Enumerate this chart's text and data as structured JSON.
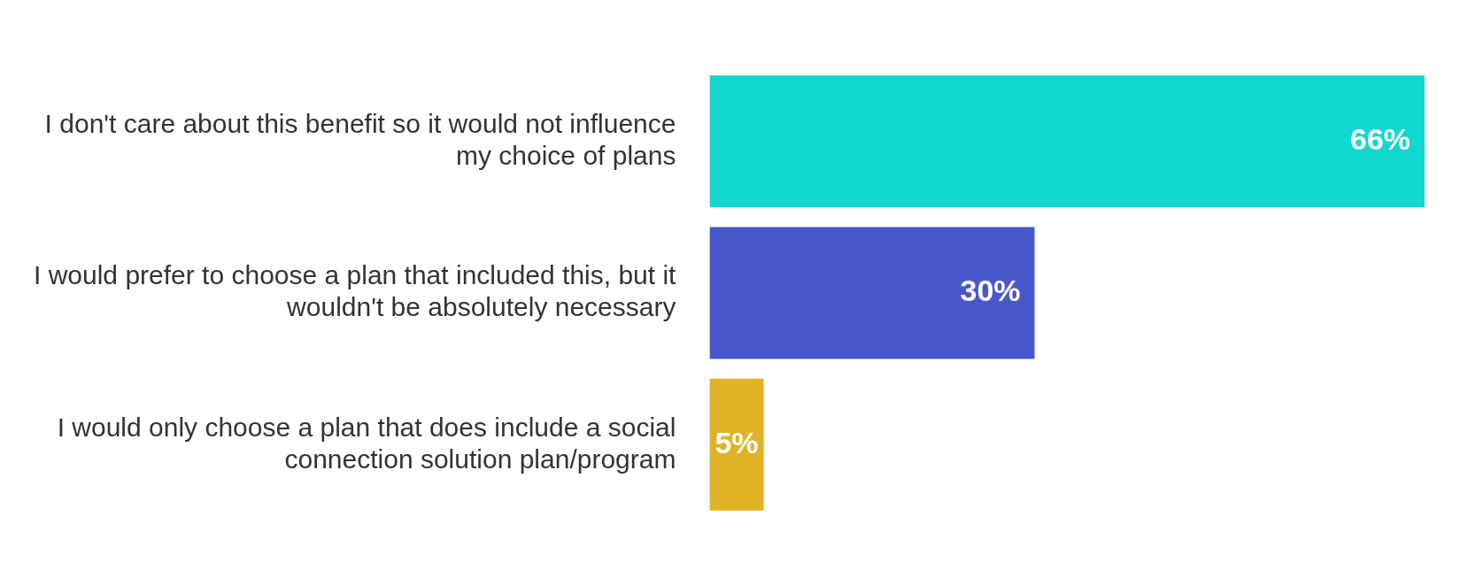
{
  "chart_data": {
    "type": "bar",
    "orientation": "horizontal",
    "categories": [
      "I don't care about this benefit so it would not influence my choice of plans",
      "I would prefer to choose a plan that included this, but it wouldn't be absolutely necessary",
      "I would only choose a plan that does include a social connection solution plan/program"
    ],
    "values": [
      66,
      30,
      5
    ],
    "colors": [
      "#10d7cf",
      "#4858cc",
      "#e2b226"
    ],
    "value_labels": [
      "66%",
      "30%",
      "5%"
    ],
    "legend": false
  }
}
